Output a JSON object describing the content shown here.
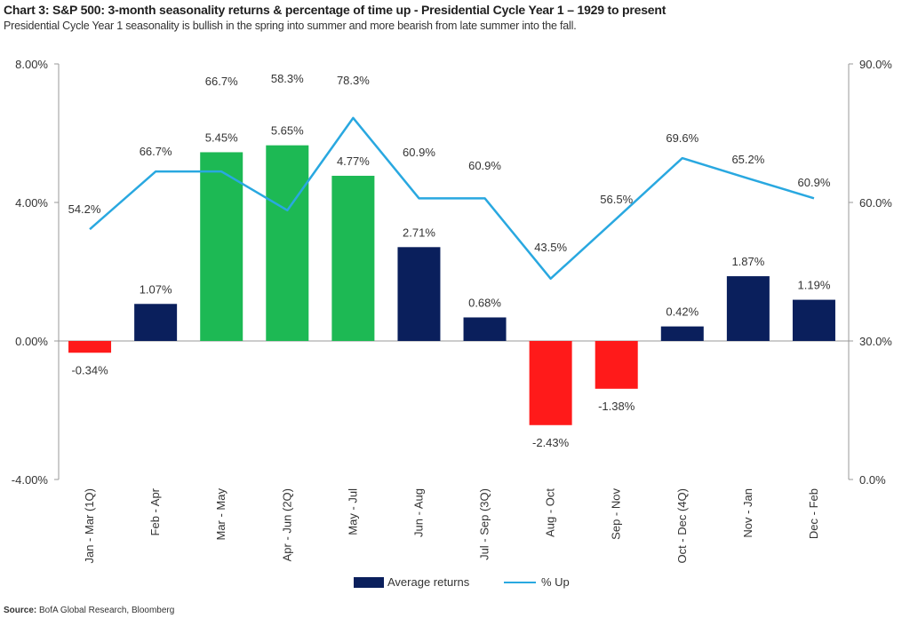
{
  "title": "Chart 3: S&P 500: 3-month seasonality returns & percentage of time up - Presidential Cycle Year 1 – 1929 to present",
  "subtitle": "Presidential Cycle Year 1 seasonality is bullish in the spring into summer and more bearish from late summer into the fall.",
  "source_label": "Source:",
  "source_text": "BofA Global Research, Bloomberg",
  "colors": {
    "positive_bar": "#0a1f5c",
    "spring_bar": "#1db954",
    "negative_bar": "#ff1a1a",
    "line": "#29a8e0",
    "axis": "#999999"
  },
  "chart_data": {
    "type": "bar",
    "categories": [
      "Jan - Mar (1Q)",
      "Feb - Apr",
      "Mar - May",
      "Apr - Jun (2Q)",
      "May - Jul",
      "Jun - Aug",
      "Jul - Sep (3Q)",
      "Aug - Oct",
      "Sep - Nov",
      "Oct - Dec (4Q)",
      "Nov - Jan",
      "Dec - Feb"
    ],
    "series": [
      {
        "name": "Average returns",
        "type": "bar",
        "axis": "left",
        "values": [
          -0.34,
          1.07,
          5.45,
          5.65,
          4.77,
          2.71,
          0.68,
          -2.43,
          -1.38,
          0.42,
          1.87,
          1.19
        ],
        "labels": [
          "-0.34%",
          "1.07%",
          "5.45%",
          "5.65%",
          "4.77%",
          "2.71%",
          "0.68%",
          "-2.43%",
          "-1.38%",
          "0.42%",
          "1.87%",
          "1.19%"
        ],
        "bar_colors": [
          "negative_bar",
          "positive_bar",
          "spring_bar",
          "spring_bar",
          "spring_bar",
          "positive_bar",
          "positive_bar",
          "negative_bar",
          "negative_bar",
          "positive_bar",
          "positive_bar",
          "positive_bar"
        ]
      },
      {
        "name": "% Up",
        "type": "line",
        "axis": "right",
        "values": [
          54.2,
          66.7,
          66.7,
          58.3,
          78.3,
          60.9,
          60.9,
          43.5,
          56.5,
          69.6,
          65.2,
          60.9
        ],
        "labels": [
          "54.2%",
          "66.7%",
          "66.7%",
          "58.3%",
          "78.3%",
          "60.9%",
          "60.9%",
          "43.5%",
          "56.5%",
          "69.6%",
          "65.2%",
          "60.9%"
        ]
      }
    ],
    "ylim_left": [
      -4,
      8
    ],
    "yticks_left": [
      "8.00%",
      "4.00%",
      "0.00%",
      "-4.00%"
    ],
    "yticks_left_values": [
      8,
      4,
      0,
      -4
    ],
    "ylim_right": [
      0,
      90
    ],
    "yticks_right": [
      "90.0%",
      "60.0%",
      "30.0%",
      "0.0%"
    ],
    "yticks_right_values": [
      90,
      60,
      30,
      0
    ],
    "grid": false,
    "legend_position": "bottom-center"
  }
}
